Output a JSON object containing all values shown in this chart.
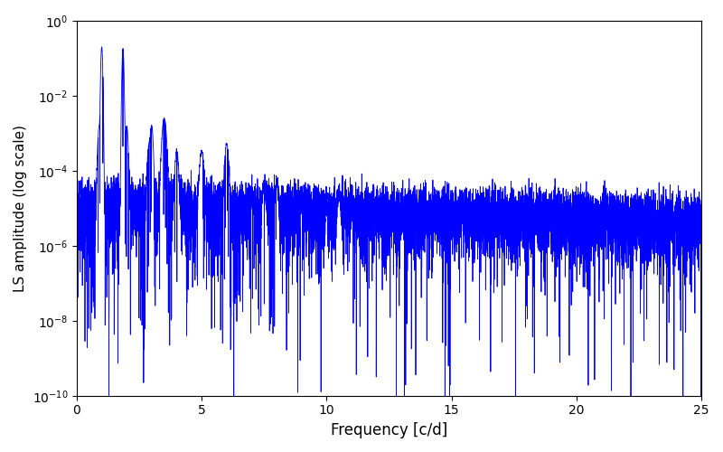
{
  "title": "",
  "xlabel": "Frequency [c/d]",
  "ylabel": "LS amplitude (log scale)",
  "line_color": "#0000ff",
  "line_width": 0.6,
  "xlim": [
    0,
    25
  ],
  "ylim": [
    1e-10,
    1.0
  ],
  "figsize": [
    8.0,
    5.0
  ],
  "dpi": 100,
  "freq_max": 25.0,
  "n_points": 8000,
  "seed": 42,
  "noise_floor_base": -4.8,
  "noise_floor_slope": -0.015,
  "background_color": "#ffffff"
}
